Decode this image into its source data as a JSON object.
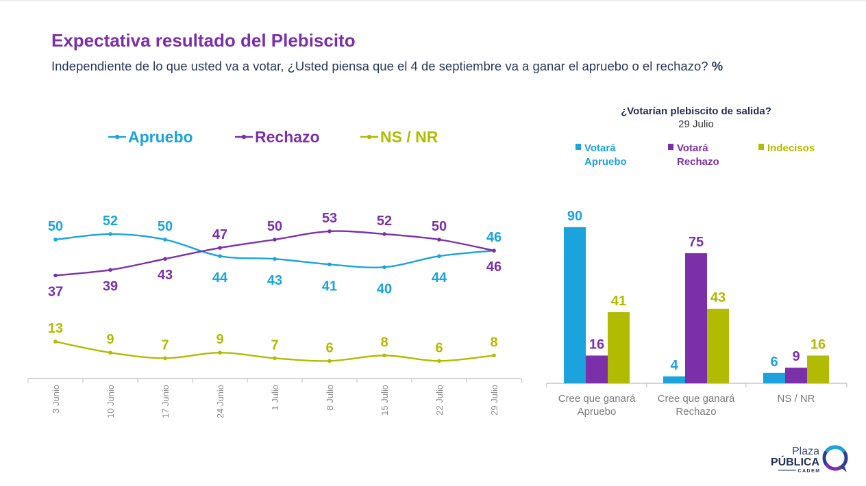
{
  "header": {
    "title": "Expectativa resultado del Plebiscito",
    "subtitle": "Independiente de lo que usted va a votar, ¿Usted piensa que el 4 de septiembre va a ganar el apruebo o el rechazo?",
    "unit": "%"
  },
  "colors": {
    "apruebo": "#1aa3dc",
    "rechazo": "#7b2fa8",
    "nsnr": "#b1bb00",
    "axis": "#bbbbbb"
  },
  "chart_data": [
    {
      "type": "line",
      "x": [
        "3 Junio",
        "10 Junio",
        "17 Junio",
        "24 Junio",
        "1 Julio",
        "8 Julio",
        "15 Julio",
        "22 Julio",
        "29 Julio"
      ],
      "series": [
        {
          "name": "Apruebo",
          "values": [
            50,
            52,
            50,
            44,
            43,
            41,
            40,
            44,
            46
          ]
        },
        {
          "name": "Rechazo",
          "values": [
            37,
            39,
            43,
            47,
            50,
            53,
            52,
            50,
            46
          ]
        },
        {
          "name": "NS / NR",
          "values": [
            13,
            9,
            7,
            9,
            7,
            6,
            8,
            6,
            8
          ]
        }
      ],
      "legend": "top"
    },
    {
      "type": "bar",
      "title": "¿Votarían plebiscito de salida?",
      "subtitle": "29 Julio",
      "categories": [
        "Cree que ganará Apruebo",
        "Cree que ganará Rechazo",
        "NS / NR"
      ],
      "series": [
        {
          "name": "Votará Apruebo",
          "values": [
            90,
            4,
            6
          ]
        },
        {
          "name": "Votará Rechazo",
          "values": [
            16,
            75,
            9
          ]
        },
        {
          "name": "Indecisos",
          "values": [
            41,
            43,
            16
          ]
        }
      ],
      "ylim": [
        0,
        100
      ],
      "legend": "top"
    }
  ],
  "logo": {
    "line1": "Plaza",
    "line2": "PÚBLICA",
    "line3": "CADEM"
  }
}
